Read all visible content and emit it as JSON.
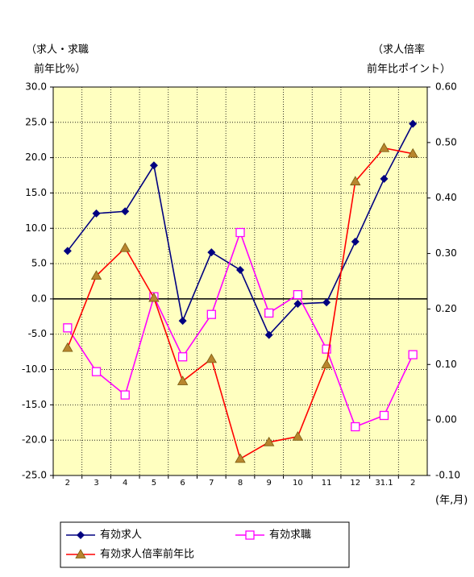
{
  "chart_data": {
    "type": "line",
    "y_axis_title": [
      "（求人・求職",
      "前年比%）"
    ],
    "y2_axis_title": [
      "（求人倍率",
      "前年比ポイント）"
    ],
    "x_axis_title": "(年,月)",
    "categories": [
      "2",
      "3",
      "4",
      "5",
      "6",
      "7",
      "8",
      "9",
      "10",
      "11",
      "12",
      "31.1",
      "2"
    ],
    "series": [
      {
        "name": "有効求人",
        "color": "#000080",
        "marker": "diamond",
        "values": [
          6.8,
          12.1,
          12.4,
          18.9,
          -3.1,
          6.6,
          4.1,
          -5.1,
          -0.7,
          -0.5,
          8.1,
          17.0,
          24.8
        ]
      },
      {
        "name": "有効求職",
        "color": "#ff00ff",
        "marker": "square",
        "values": [
          -4.1,
          -10.3,
          -13.6,
          0.3,
          -8.2,
          -2.2,
          9.4,
          -2.0,
          0.6,
          -7.1,
          -18.1,
          -16.5,
          -7.9
        ]
      },
      {
        "name": "有効求人倍率前年比",
        "color": "#ff0000",
        "marker": "triangle",
        "axis": "y2",
        "values": [
          0.13,
          0.26,
          0.31,
          0.22,
          0.07,
          0.11,
          -0.07,
          -0.04,
          -0.03,
          0.1,
          0.43,
          0.49,
          0.48
        ]
      }
    ],
    "ylim": [
      -25,
      30
    ],
    "yticks": [
      {
        "value": 30,
        "label": "30.0"
      },
      {
        "value": 25,
        "label": "25.0"
      },
      {
        "value": 20,
        "label": "20.0"
      },
      {
        "value": 15,
        "label": "15.0"
      },
      {
        "value": 10,
        "label": "10.0"
      },
      {
        "value": 5,
        "label": "5.0"
      },
      {
        "value": 0,
        "label": "0.0"
      },
      {
        "value": -5,
        "label": "-5.0"
      },
      {
        "value": -10,
        "label": "-10.0"
      },
      {
        "value": -15,
        "label": "-15.0"
      },
      {
        "value": -20,
        "label": "-20.0"
      },
      {
        "value": -25,
        "label": "-25.0"
      }
    ],
    "y2lim": [
      -0.1,
      0.6
    ],
    "y2ticks": [
      {
        "value": 0.6,
        "label": "0.60"
      },
      {
        "value": 0.5,
        "label": "0.50"
      },
      {
        "value": 0.4,
        "label": "0.40"
      },
      {
        "value": 0.3,
        "label": "0.30"
      },
      {
        "value": 0.2,
        "label": "0.20"
      },
      {
        "value": 0.1,
        "label": "0.10"
      },
      {
        "value": 0,
        "label": "0.00"
      },
      {
        "value": -0.1,
        "label": "-0.10"
      }
    ],
    "grid": true,
    "plot_background": "#ffffc0"
  }
}
